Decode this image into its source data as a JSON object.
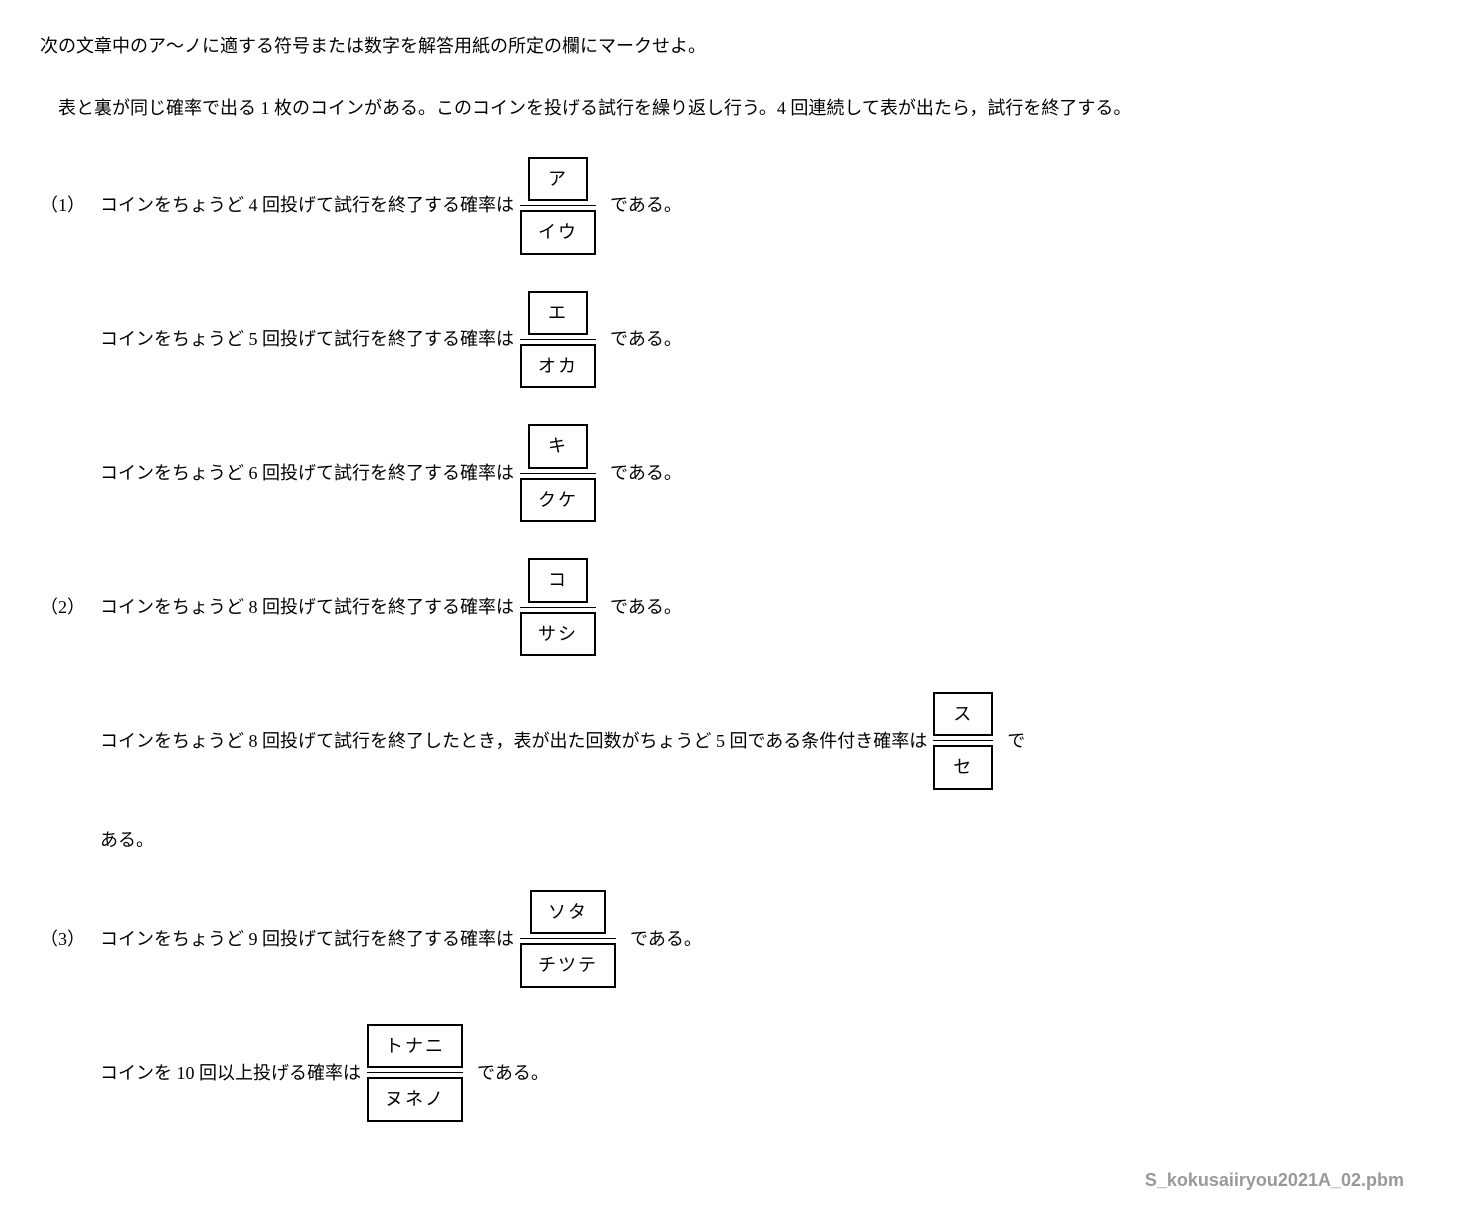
{
  "intro": "次の文章中のア～ノに適する符号または数字を解答用紙の所定の欄にマークせよ。",
  "setup": "表と裏が同じ確率で出る 1 枚のコインがある。このコインを投げる試行を繰り返し行う。4 回連続して表が出たら，試行を終了する。",
  "q1": {
    "num": "（1）",
    "line1_pre": "コインをちょうど 4 回投げて試行を終了する確率は",
    "line1_num": "ア",
    "line1_den": "イウ",
    "line1_post": "である。",
    "line2_pre": "コインをちょうど 5 回投げて試行を終了する確率は",
    "line2_num": "エ",
    "line2_den": "オカ",
    "line2_post": "である。",
    "line3_pre": "コインをちょうど 6 回投げて試行を終了する確率は",
    "line3_num": "キ",
    "line3_den": "クケ",
    "line3_post": "である。"
  },
  "q2": {
    "num": "（2）",
    "line1_pre": "コインをちょうど 8 回投げて試行を終了する確率は",
    "line1_num": "コ",
    "line1_den": "サシ",
    "line1_post": "である。",
    "line2_pre": "コインをちょうど 8 回投げて試行を終了したとき，表が出た回数がちょうど 5 回である条件付き確率は",
    "line2_num": "ス",
    "line2_den": "セ",
    "line2_post": "で",
    "line2_wrap": "ある。"
  },
  "q3": {
    "num": "（3）",
    "line1_pre": "コインをちょうど 9 回投げて試行を終了する確率は",
    "line1_num": "ソタ",
    "line1_den": "チツテ",
    "line1_post": "である。",
    "line2_pre": "コインを 10 回以上投げる確率は",
    "line2_num": "トナニ",
    "line2_den": "ヌネノ",
    "line2_post": "である。"
  },
  "footer": "S_kokusaiiryou2021A_02.pbm"
}
